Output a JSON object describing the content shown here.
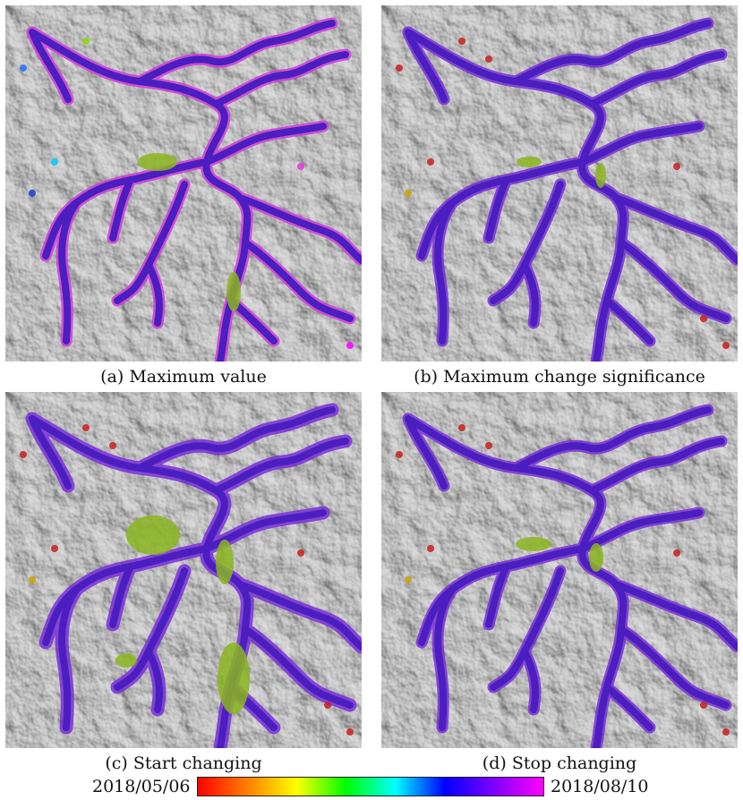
{
  "panels": [
    {
      "id": "a",
      "caption": "(a) Maximum value",
      "variant": "value"
    },
    {
      "id": "b",
      "caption": "(b) Maximum change significance",
      "variant": "significance"
    },
    {
      "id": "c",
      "caption": "(c) Start changing",
      "variant": "start"
    },
    {
      "id": "d",
      "caption": "(d) Stop changing",
      "variant": "stop"
    }
  ],
  "colorbar": {
    "start_label": "2018/05/06",
    "end_label": "2018/08/10",
    "stops": [
      "#ff0000",
      "#ff7f00",
      "#ffff00",
      "#00ff00",
      "#00ffff",
      "#0000ff",
      "#8000ff",
      "#ff00ff"
    ]
  },
  "colors": {
    "terrain": "#8c8c8c",
    "river_main": "#4b1fbf",
    "river_edge": "#7a2fd8",
    "highlight_magenta": "#d13bd8",
    "highlight_green": "#8ab520",
    "highlight_red": "#c81e1e"
  }
}
